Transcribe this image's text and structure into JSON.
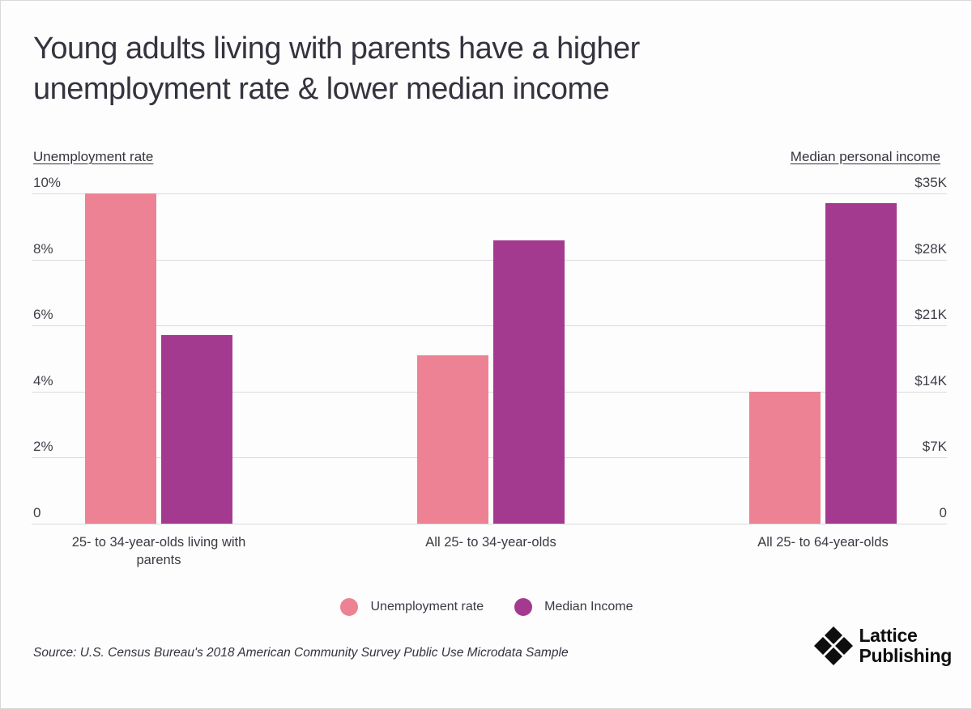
{
  "title": {
    "line1": "Young adults living with parents have a higher",
    "line2": "unemployment rate & lower median income"
  },
  "chart_data": {
    "type": "bar",
    "categories": [
      "25- to 34-year-olds living with parents",
      "All 25- to 34-year-olds",
      "All 25- to 64-year-olds"
    ],
    "series": [
      {
        "name": "Unemployment rate",
        "axis": "left",
        "color": "#ED8294",
        "values": [
          10.0,
          5.1,
          4.0
        ],
        "unit": "percent"
      },
      {
        "name": "Median Income",
        "axis": "right",
        "color": "#A43A90",
        "values": [
          20000,
          30000,
          34000
        ],
        "unit": "USD"
      }
    ],
    "left_axis": {
      "label": "Unemployment rate",
      "range": [
        0,
        10
      ],
      "ticks": [
        "10%",
        "8%",
        "6%",
        "4%",
        "2%",
        "0"
      ]
    },
    "right_axis": {
      "label": "Median personal income",
      "range": [
        0,
        35000
      ],
      "ticks": [
        "$35K",
        "$28K",
        "$21K",
        "$14K",
        "$7K",
        "0"
      ]
    },
    "grid": true,
    "legend_position": "bottom"
  },
  "legend": [
    {
      "label": "Unemployment rate",
      "color": "#ED8294"
    },
    {
      "label": "Median Income",
      "color": "#A43A90"
    }
  ],
  "source": "Source: U.S. Census Bureau's 2018 American Community Survey Public Use Microdata Sample",
  "branding": {
    "line1": "Lattice",
    "line2": "Publishing",
    "icon": "lattice-diamonds-icon",
    "color": "#0e0e0e"
  },
  "colors": {
    "pink": "#ED8294",
    "purple": "#A43A90",
    "gridline": "#dadada",
    "text": "#33343e",
    "background": "#fdfdfd"
  }
}
